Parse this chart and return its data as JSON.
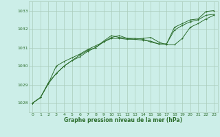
{
  "title": "Graphe pression niveau de la mer (hPa)",
  "background_color": "#cceee8",
  "grid_color": "#aaccbb",
  "line_color": "#2d6e2d",
  "xlim": [
    -0.5,
    23.5
  ],
  "ylim": [
    1027.5,
    1033.5
  ],
  "yticks": [
    1028,
    1029,
    1030,
    1031,
    1032,
    1033
  ],
  "xticks": [
    0,
    1,
    2,
    3,
    4,
    5,
    6,
    7,
    8,
    9,
    10,
    11,
    12,
    13,
    14,
    15,
    16,
    17,
    18,
    19,
    20,
    21,
    22,
    23
  ],
  "series1": {
    "x": [
      0,
      1,
      2,
      3,
      4,
      5,
      6,
      7,
      8,
      9,
      10,
      11,
      12,
      13,
      14,
      15,
      16,
      17,
      18,
      19,
      20,
      21,
      22,
      23
    ],
    "y": [
      1028.0,
      1028.3,
      1029.1,
      1029.6,
      1030.0,
      1030.3,
      1030.6,
      1030.85,
      1031.0,
      1031.3,
      1031.55,
      1031.65,
      1031.5,
      1031.45,
      1031.5,
      1031.55,
      1031.3,
      1031.15,
      1031.15,
      1031.5,
      1032.1,
      1032.3,
      1032.55,
      1032.75
    ]
  },
  "series2": {
    "x": [
      0,
      1,
      2,
      3,
      4,
      5,
      6,
      7,
      8,
      9,
      10,
      11,
      12,
      13,
      14,
      15,
      16,
      17,
      18,
      19,
      20,
      21,
      22,
      23
    ],
    "y": [
      1028.0,
      1028.3,
      1029.05,
      1030.0,
      1030.25,
      1030.45,
      1030.65,
      1030.9,
      1031.1,
      1031.3,
      1031.5,
      1031.5,
      1031.45,
      1031.45,
      1031.4,
      1031.35,
      1031.2,
      1031.2,
      1031.95,
      1032.2,
      1032.4,
      1032.5,
      1032.75,
      1032.8
    ]
  },
  "series3": {
    "x": [
      0,
      1,
      2,
      3,
      4,
      5,
      6,
      7,
      8,
      9,
      10,
      11,
      12,
      13,
      14,
      15,
      16,
      17,
      18,
      19,
      20,
      21,
      22,
      23
    ],
    "y": [
      1028.0,
      1028.3,
      1029.05,
      1029.6,
      1030.0,
      1030.3,
      1030.5,
      1030.8,
      1031.0,
      1031.35,
      1031.65,
      1031.55,
      1031.5,
      1031.5,
      1031.45,
      1031.3,
      1031.2,
      1031.2,
      1032.1,
      1032.3,
      1032.5,
      1032.55,
      1032.95,
      1033.0
    ]
  }
}
